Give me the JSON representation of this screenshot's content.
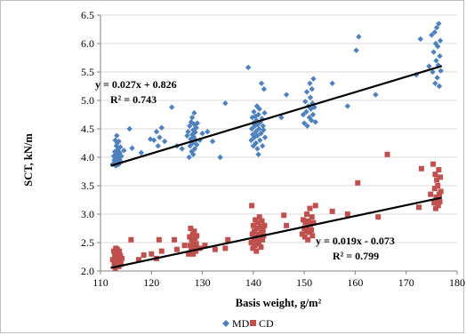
{
  "chart_data": {
    "type": "scatter",
    "xlabel": "Basis weight, g/m²",
    "ylabel": "SCT, kN/m",
    "xlim": [
      110,
      180
    ],
    "ylim": [
      2.0,
      6.5
    ],
    "xticks": [
      "110",
      "120",
      "130",
      "140",
      "150",
      "160",
      "170",
      "180"
    ],
    "yticks": [
      "2.0",
      "2.5",
      "3.0",
      "3.5",
      "4.0",
      "4.5",
      "5.0",
      "5.5",
      "6.0",
      "6.5"
    ],
    "legend_position": "bottom",
    "series": [
      {
        "name": "MD",
        "color": "#4F81BD",
        "marker": "diamond",
        "points": [
          [
            112.4,
            3.88
          ],
          [
            112.6,
            4.02
          ],
          [
            112.7,
            3.95
          ],
          [
            112.8,
            4.1
          ],
          [
            112.9,
            3.92
          ],
          [
            112.9,
            4.3
          ],
          [
            113.0,
            3.85
          ],
          [
            113.0,
            4.05
          ],
          [
            113.1,
            4.2
          ],
          [
            113.1,
            3.98
          ],
          [
            113.2,
            4.38
          ],
          [
            113.2,
            3.9
          ],
          [
            113.3,
            4.12
          ],
          [
            113.3,
            4.25
          ],
          [
            113.4,
            3.94
          ],
          [
            113.4,
            4.06
          ],
          [
            113.5,
            4.15
          ],
          [
            113.5,
            3.87
          ],
          [
            113.6,
            4.0
          ],
          [
            113.6,
            4.28
          ],
          [
            113.7,
            3.96
          ],
          [
            113.8,
            4.08
          ],
          [
            113.9,
            4.18
          ],
          [
            114.0,
            3.92
          ],
          [
            114.1,
            4.02
          ],
          [
            114.6,
            4.12
          ],
          [
            115.7,
            4.5
          ],
          [
            116.2,
            4.16
          ],
          [
            118.0,
            4.08
          ],
          [
            119.8,
            4.32
          ],
          [
            120.5,
            4.3
          ],
          [
            121.0,
            4.45
          ],
          [
            121.3,
            4.2
          ],
          [
            121.6,
            4.35
          ],
          [
            122.0,
            4.52
          ],
          [
            122.6,
            4.28
          ],
          [
            124.0,
            4.88
          ],
          [
            125.0,
            4.2
          ],
          [
            126.0,
            4.15
          ],
          [
            127.0,
            4.38
          ],
          [
            127.2,
            4.45
          ],
          [
            127.4,
            4.0
          ],
          [
            127.5,
            4.55
          ],
          [
            127.6,
            4.2
          ],
          [
            127.7,
            4.32
          ],
          [
            127.8,
            4.62
          ],
          [
            127.9,
            4.1
          ],
          [
            128.0,
            4.4
          ],
          [
            128.0,
            4.7
          ],
          [
            128.1,
            4.25
          ],
          [
            128.2,
            4.48
          ],
          [
            128.2,
            4.05
          ],
          [
            128.3,
            4.36
          ],
          [
            128.4,
            4.58
          ],
          [
            128.4,
            4.78
          ],
          [
            128.5,
            4.15
          ],
          [
            128.6,
            4.44
          ],
          [
            128.7,
            4.3
          ],
          [
            128.8,
            4.52
          ],
          [
            128.9,
            4.22
          ],
          [
            129.0,
            4.6
          ],
          [
            129.5,
            4.3
          ],
          [
            130.0,
            4.42
          ],
          [
            131.0,
            4.45
          ],
          [
            132.0,
            4.28
          ],
          [
            133.5,
            4.0
          ],
          [
            134.5,
            4.95
          ],
          [
            139.0,
            5.58
          ],
          [
            139.6,
            4.3
          ],
          [
            139.7,
            4.5
          ],
          [
            139.8,
            4.7
          ],
          [
            139.9,
            4.4
          ],
          [
            140.0,
            4.6
          ],
          [
            140.0,
            4.2
          ],
          [
            140.1,
            4.8
          ],
          [
            140.2,
            4.35
          ],
          [
            140.3,
            4.55
          ],
          [
            140.4,
            4.72
          ],
          [
            140.5,
            4.25
          ],
          [
            140.5,
            4.45
          ],
          [
            140.6,
            4.65
          ],
          [
            140.7,
            4.9
          ],
          [
            140.8,
            4.15
          ],
          [
            140.8,
            4.38
          ],
          [
            140.9,
            4.58
          ],
          [
            141.0,
            4.75
          ],
          [
            141.0,
            4.05
          ],
          [
            141.1,
            4.5
          ],
          [
            141.2,
            4.85
          ],
          [
            141.3,
            4.3
          ],
          [
            141.4,
            4.62
          ],
          [
            141.5,
            4.42
          ],
          [
            141.6,
            5.3
          ],
          [
            141.7,
            4.68
          ],
          [
            141.8,
            4.2
          ],
          [
            141.9,
            4.55
          ],
          [
            142.0,
            4.48
          ],
          [
            142.1,
            5.2
          ],
          [
            142.2,
            4.78
          ],
          [
            142.3,
            4.35
          ],
          [
            145.5,
            4.7
          ],
          [
            146.5,
            5.1
          ],
          [
            149.8,
            4.75
          ],
          [
            150.0,
            4.6
          ],
          [
            150.2,
            4.98
          ],
          [
            150.4,
            4.8
          ],
          [
            150.5,
            5.15
          ],
          [
            150.6,
            4.55
          ],
          [
            150.8,
            4.9
          ],
          [
            151.0,
            4.7
          ],
          [
            151.1,
            5.3
          ],
          [
            151.2,
            5.05
          ],
          [
            151.3,
            4.85
          ],
          [
            151.4,
            4.65
          ],
          [
            151.5,
            5.2
          ],
          [
            151.6,
            4.95
          ],
          [
            151.7,
            4.75
          ],
          [
            151.8,
            5.38
          ],
          [
            152.0,
            4.88
          ],
          [
            152.2,
            4.62
          ],
          [
            155.5,
            5.3
          ],
          [
            158.5,
            4.9
          ],
          [
            160.2,
            5.88
          ],
          [
            160.7,
            6.12
          ],
          [
            164.0,
            5.1
          ],
          [
            172.0,
            5.45
          ],
          [
            172.8,
            6.08
          ],
          [
            174.5,
            5.6
          ],
          [
            175.0,
            6.15
          ],
          [
            175.2,
            5.5
          ],
          [
            175.4,
            5.85
          ],
          [
            175.6,
            6.2
          ],
          [
            175.7,
            5.3
          ],
          [
            175.8,
            6.0
          ],
          [
            175.9,
            5.7
          ],
          [
            176.0,
            6.28
          ],
          [
            176.1,
            5.4
          ],
          [
            176.2,
            5.95
          ],
          [
            176.3,
            5.62
          ],
          [
            176.4,
            6.35
          ],
          [
            176.5,
            5.25
          ],
          [
            176.6,
            5.78
          ],
          [
            176.7,
            6.05
          ],
          [
            176.8,
            5.52
          ]
        ],
        "trendline": {
          "slope": 0.027,
          "intercept": 0.826,
          "x_range": [
            112,
            177
          ]
        },
        "equation": "y = 0.027x + 0.826",
        "r_squared": "R² = 0.743"
      },
      {
        "name": "CD",
        "color": "#C0504D",
        "marker": "square",
        "points": [
          [
            112.4,
            2.2
          ],
          [
            112.6,
            2.35
          ],
          [
            112.7,
            2.12
          ],
          [
            112.8,
            2.28
          ],
          [
            112.9,
            2.05
          ],
          [
            113.0,
            2.4
          ],
          [
            113.0,
            2.18
          ],
          [
            113.1,
            2.3
          ],
          [
            113.2,
            2.1
          ],
          [
            113.2,
            2.25
          ],
          [
            113.3,
            2.38
          ],
          [
            113.4,
            2.15
          ],
          [
            113.4,
            2.32
          ],
          [
            113.5,
            2.22
          ],
          [
            113.6,
            2.08
          ],
          [
            113.7,
            2.35
          ],
          [
            113.8,
            2.18
          ],
          [
            113.9,
            2.27
          ],
          [
            114.0,
            2.12
          ],
          [
            114.2,
            2.22
          ],
          [
            116.0,
            2.55
          ],
          [
            117.5,
            2.2
          ],
          [
            118.5,
            2.28
          ],
          [
            120.0,
            2.3
          ],
          [
            121.0,
            2.22
          ],
          [
            121.5,
            2.55
          ],
          [
            122.0,
            2.35
          ],
          [
            124.5,
            2.55
          ],
          [
            125.0,
            2.38
          ],
          [
            126.5,
            2.45
          ],
          [
            127.3,
            2.3
          ],
          [
            127.5,
            2.6
          ],
          [
            127.6,
            2.45
          ],
          [
            127.7,
            2.75
          ],
          [
            127.8,
            2.35
          ],
          [
            127.9,
            2.55
          ],
          [
            128.0,
            2.4
          ],
          [
            128.1,
            2.65
          ],
          [
            128.2,
            2.3
          ],
          [
            128.3,
            2.5
          ],
          [
            128.4,
            2.7
          ],
          [
            128.5,
            2.42
          ],
          [
            128.6,
            2.58
          ],
          [
            128.7,
            2.35
          ],
          [
            128.8,
            2.48
          ],
          [
            128.9,
            2.62
          ],
          [
            129.5,
            2.4
          ],
          [
            130.5,
            2.45
          ],
          [
            132.5,
            2.38
          ],
          [
            134.5,
            2.4
          ],
          [
            135.0,
            2.55
          ],
          [
            139.6,
            2.5
          ],
          [
            139.7,
            3.15
          ],
          [
            139.8,
            2.65
          ],
          [
            139.9,
            2.4
          ],
          [
            140.0,
            2.8
          ],
          [
            140.1,
            2.55
          ],
          [
            140.2,
            2.7
          ],
          [
            140.3,
            2.45
          ],
          [
            140.4,
            2.9
          ],
          [
            140.5,
            2.6
          ],
          [
            140.6,
            2.35
          ],
          [
            140.7,
            2.75
          ],
          [
            140.8,
            2.52
          ],
          [
            140.9,
            2.85
          ],
          [
            141.0,
            2.65
          ],
          [
            141.1,
            2.48
          ],
          [
            141.2,
            2.95
          ],
          [
            141.3,
            2.58
          ],
          [
            141.4,
            2.78
          ],
          [
            141.5,
            2.42
          ],
          [
            141.6,
            2.68
          ],
          [
            141.7,
            2.88
          ],
          [
            141.8,
            2.55
          ],
          [
            141.9,
            2.72
          ],
          [
            142.0,
            2.62
          ],
          [
            142.2,
            2.8
          ],
          [
            146.0,
            2.98
          ],
          [
            146.5,
            2.8
          ],
          [
            149.6,
            2.65
          ],
          [
            149.8,
            2.9
          ],
          [
            150.0,
            2.75
          ],
          [
            150.1,
            2.6
          ],
          [
            150.2,
            2.85
          ],
          [
            150.4,
            2.7
          ],
          [
            150.5,
            3.0
          ],
          [
            150.6,
            2.78
          ],
          [
            150.7,
            2.55
          ],
          [
            150.8,
            2.88
          ],
          [
            151.0,
            2.68
          ],
          [
            151.1,
            3.1
          ],
          [
            151.2,
            2.82
          ],
          [
            151.4,
            2.72
          ],
          [
            151.5,
            2.95
          ],
          [
            151.6,
            2.62
          ],
          [
            151.8,
            2.85
          ],
          [
            152.2,
            3.15
          ],
          [
            155.5,
            3.05
          ],
          [
            158.5,
            3.0
          ],
          [
            160.5,
            3.55
          ],
          [
            164.5,
            2.95
          ],
          [
            166.3,
            4.05
          ],
          [
            172.5,
            3.12
          ],
          [
            173.0,
            3.8
          ],
          [
            174.8,
            3.35
          ],
          [
            175.3,
            3.88
          ],
          [
            175.5,
            3.2
          ],
          [
            175.6,
            3.45
          ],
          [
            175.7,
            3.7
          ],
          [
            175.8,
            3.1
          ],
          [
            175.9,
            3.3
          ],
          [
            176.0,
            3.6
          ],
          [
            176.1,
            3.25
          ],
          [
            176.2,
            3.5
          ],
          [
            176.3,
            3.15
          ],
          [
            176.4,
            3.78
          ],
          [
            176.5,
            3.35
          ],
          [
            176.6,
            3.22
          ],
          [
            176.7,
            3.65
          ],
          [
            176.8,
            3.4
          ]
        ],
        "trendline": {
          "slope": 0.019,
          "intercept": -0.073,
          "x_range": [
            112,
            177
          ]
        },
        "equation": "y = 0.019x - 0.073",
        "r_squared": "R² = 0.799"
      }
    ]
  }
}
